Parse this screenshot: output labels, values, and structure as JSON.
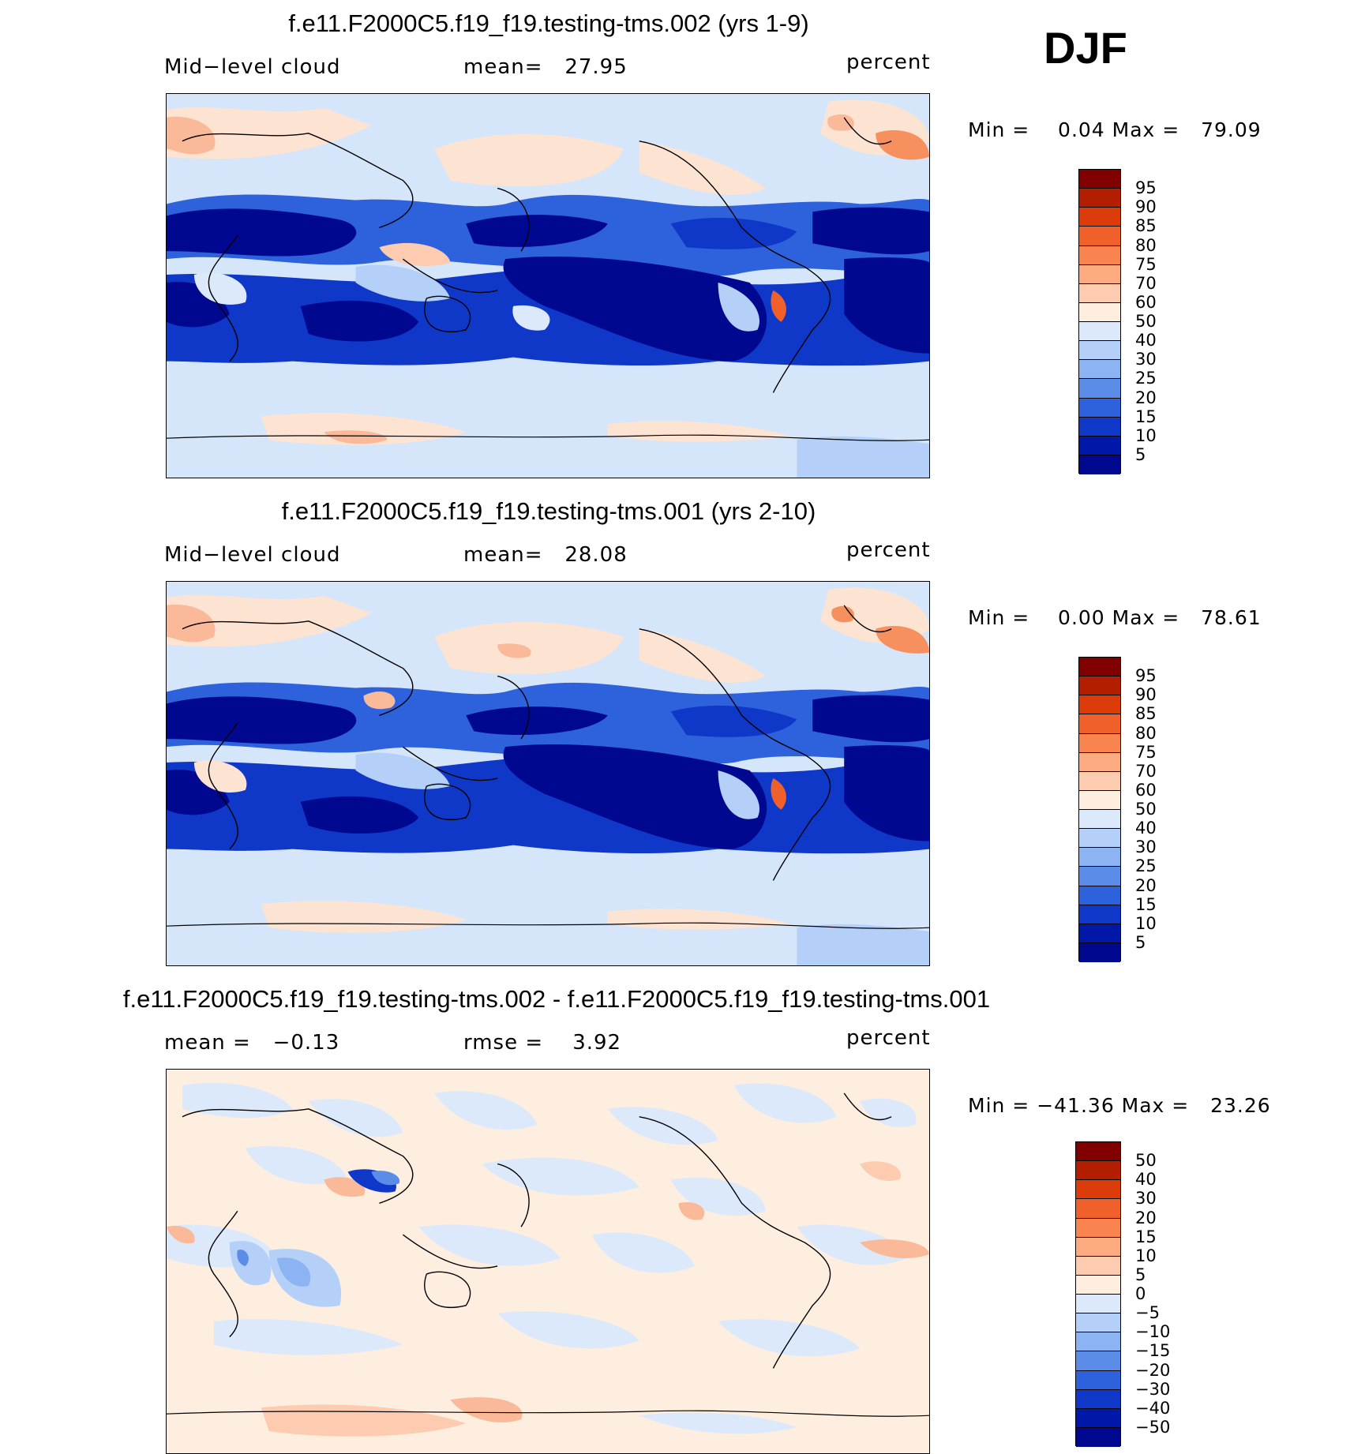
{
  "season": "DJF",
  "panels": [
    {
      "title": "f.e11.F2000C5.f19_f19.testing-tms.002 (yrs 1-9)",
      "left_label": "Mid−level cloud",
      "center_label": "mean=   27.95",
      "right_label": "percent",
      "min_max": "Min =    0.04 Max =   79.09",
      "colorbar_labels": [
        "95",
        "90",
        "85",
        "80",
        "75",
        "70",
        "60",
        "50",
        "40",
        "30",
        "25",
        "20",
        "15",
        "10",
        "5"
      ],
      "colorbar_colors": [
        "#800000",
        "#b41e00",
        "#dc3c0a",
        "#f0602a",
        "#fa8450",
        "#fcaa80",
        "#fdccb0",
        "#fdeee0",
        "#dce9fb",
        "#b4d0f8",
        "#8cb4f2",
        "#5a8ce8",
        "#2e62dc",
        "#1038c8",
        "#0018a8",
        "#000890"
      ]
    },
    {
      "title": "f.e11.F2000C5.f19_f19.testing-tms.001 (yrs 2-10)",
      "left_label": "Mid−level cloud",
      "center_label": "mean=   28.08",
      "right_label": "percent",
      "min_max": "Min =    0.00 Max =   78.61",
      "colorbar_labels": [
        "95",
        "90",
        "85",
        "80",
        "75",
        "70",
        "60",
        "50",
        "40",
        "30",
        "25",
        "20",
        "15",
        "10",
        "5"
      ],
      "colorbar_colors": [
        "#800000",
        "#b41e00",
        "#dc3c0a",
        "#f0602a",
        "#fa8450",
        "#fcaa80",
        "#fdccb0",
        "#fdeee0",
        "#dce9fb",
        "#b4d0f8",
        "#8cb4f2",
        "#5a8ce8",
        "#2e62dc",
        "#1038c8",
        "#0018a8",
        "#000890"
      ]
    },
    {
      "title": "f.e11.F2000C5.f19_f19.testing-tms.002 - f.e11.F2000C5.f19_f19.testing-tms.001",
      "left_label": "mean =   −0.13",
      "center_label": "rmse =    3.92",
      "right_label": "percent",
      "min_max": "Min = −41.36 Max =   23.26",
      "colorbar_labels": [
        "50",
        "40",
        "30",
        "20",
        "15",
        "10",
        "5",
        "0",
        "−5",
        "−10",
        "−15",
        "−20",
        "−30",
        "−40",
        "−50"
      ],
      "colorbar_colors": [
        "#800000",
        "#b41e00",
        "#dc3c0a",
        "#f0602a",
        "#fa8450",
        "#fcaa80",
        "#fdccb0",
        "#fdeee0",
        "#dce9fb",
        "#b4d0f8",
        "#8cb4f2",
        "#5a8ce8",
        "#2e62dc",
        "#1038c8",
        "#0018a8",
        "#000890"
      ]
    }
  ]
}
